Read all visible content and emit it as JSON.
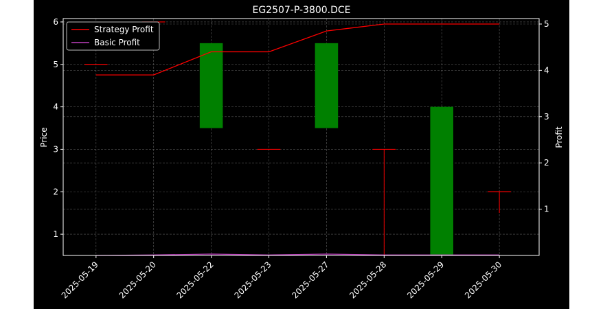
{
  "chart_data": {
    "type": "candlestick",
    "title": "EG2507-P-3800.DCE",
    "xlabel": "",
    "ylabel_left": "Price",
    "ylabel_right": "Profit",
    "categories": [
      "2025-05-19",
      "2025-05-20",
      "2025-05-22",
      "2025-05-23",
      "2025-05-27",
      "2025-05-28",
      "2025-05-29",
      "2025-05-30"
    ],
    "ohlc": [
      {
        "open": 5.0,
        "high": 5.0,
        "low": 5.0,
        "close": 5.0
      },
      {
        "open": 6.0,
        "high": 6.0,
        "low": 6.0,
        "close": 6.0
      },
      {
        "open": 3.5,
        "high": 5.5,
        "low": 3.5,
        "close": 5.5
      },
      {
        "open": 3.0,
        "high": 3.0,
        "low": 3.0,
        "close": 3.0
      },
      {
        "open": 3.5,
        "high": 5.5,
        "low": 3.5,
        "close": 5.5
      },
      {
        "open": 3.0,
        "high": 3.0,
        "low": 0.5,
        "close": 3.0
      },
      {
        "open": 0.5,
        "high": 4.0,
        "low": 0.5,
        "close": 4.0
      },
      {
        "open": 2.0,
        "high": 2.0,
        "low": 1.5,
        "close": 2.0
      }
    ],
    "series": [
      {
        "name": "Strategy Profit",
        "axis": "right",
        "color": "#ff0000",
        "values": [
          3.9,
          3.9,
          4.4,
          4.4,
          4.85,
          5.0,
          5.0,
          5.0
        ]
      },
      {
        "name": "Basic Profit",
        "axis": "right",
        "color": "#bf40bf",
        "values": [
          0.0,
          0.01,
          0.03,
          0.01,
          0.03,
          0.01,
          0.01,
          0.01
        ]
      }
    ],
    "ylim_left": [
      0.5,
      6.08
    ],
    "ylim_right": [
      0.0,
      5.0
    ],
    "yticks_left": [
      1,
      2,
      3,
      4,
      5,
      6
    ],
    "yticks_right": [
      1,
      2,
      3,
      4,
      5
    ],
    "grid": true,
    "legend_position": "top-left",
    "colors": {
      "background": "#000000",
      "text": "#ffffff",
      "up_candle": "#008000",
      "wick": "#ff0000",
      "grid": "#808080"
    }
  }
}
